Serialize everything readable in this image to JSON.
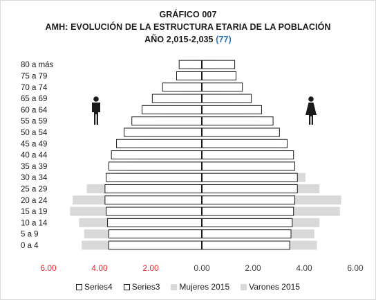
{
  "chart_data": {
    "type": "bar",
    "title": "GRÁFICO 007",
    "subtitle_prefix": "AMH: EVOLUCIÓN DE LA ESTRUCTURA ETARIA DE LA POBLACIÓN",
    "subtitle_years": "AÑO 2,015-2,035",
    "subtitle_ref": "(77)",
    "categories": [
      "0 a 4",
      "5 a 9",
      "10 a 14",
      "15 a 19",
      "20 a 24",
      "25 a 29",
      "30 a 34",
      "35 a 39",
      "40 a 44",
      "45 a 49",
      "50 a 54",
      "55 a 59",
      "60 a 64",
      "65 a 69",
      "70 a 74",
      "75 a 79",
      "80 a más"
    ],
    "xlim": [
      -6,
      6
    ],
    "xticks": [
      {
        "value": -6,
        "label": "6.00",
        "color": "#e8262d"
      },
      {
        "value": -4,
        "label": "4.00",
        "color": "#e8262d"
      },
      {
        "value": -2,
        "label": "2.00",
        "color": "#e8262d"
      },
      {
        "value": 0,
        "label": "0.00",
        "color": "#404040"
      },
      {
        "value": 2,
        "label": "2.00",
        "color": "#404040"
      },
      {
        "value": 4,
        "label": "4.00",
        "color": "#404040"
      },
      {
        "value": 6,
        "label": "6.00",
        "color": "#404040"
      }
    ],
    "series": [
      {
        "name": "Series4",
        "style": "outline",
        "values": [
          -3.65,
          -3.65,
          -3.7,
          -3.75,
          -3.8,
          -3.8,
          -3.75,
          -3.65,
          -3.55,
          -3.35,
          -3.05,
          -2.75,
          -2.35,
          -1.95,
          -1.55,
          -1.0,
          -0.9
        ]
      },
      {
        "name": "Series3",
        "style": "outline",
        "values": [
          3.45,
          3.5,
          3.55,
          3.6,
          3.65,
          3.75,
          3.75,
          3.65,
          3.6,
          3.35,
          3.05,
          2.8,
          2.35,
          1.95,
          1.6,
          1.35,
          1.3
        ]
      },
      {
        "name": "Mujeres 2015",
        "style": "fill",
        "values": [
          4.5,
          4.4,
          4.6,
          5.4,
          5.45,
          4.6,
          4.05,
          3.65,
          3.25,
          2.9,
          2.55,
          2.1,
          1.6,
          1.15,
          0.8,
          0.55,
          0.55
        ]
      },
      {
        "name": "Varones 2015",
        "style": "fill",
        "values": [
          -4.7,
          -4.6,
          -4.8,
          -5.15,
          -5.05,
          -4.5,
          -3.4,
          -2.9,
          -2.5,
          -2.3,
          -2.05,
          -1.85,
          -1.5,
          -1.1,
          -0.75,
          -0.55,
          -0.45
        ]
      }
    ],
    "grid": false,
    "legend_position": "bottom",
    "colors": {
      "fill": "#d9d9d9",
      "outline_fill": "#ffffff",
      "outline_stroke": "#1a1a1a",
      "negative_tick": "#e8262d",
      "ref": "#2e74b5"
    },
    "icons": {
      "left": "male-figure-icon",
      "right": "female-figure-icon"
    }
  }
}
